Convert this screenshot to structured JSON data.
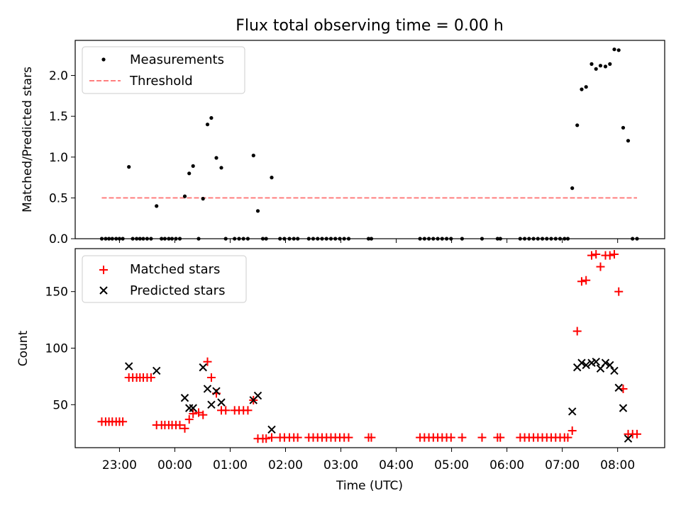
{
  "figure": {
    "title": "Flux total observing time = 0.00 h"
  },
  "colors": {
    "measurements": "#000000",
    "threshold": "#ff7f7f",
    "matched": "#ff0000",
    "predicted": "#000000"
  },
  "chart_data": [
    {
      "type": "scatter",
      "title": "Flux total observing time = 0.00 h",
      "xlabel": "",
      "ylabel": "Matched/Predicted stars",
      "xlim": [
        -1.8,
        8.85
      ],
      "ylim": [
        0.0,
        2.43
      ],
      "yticks": [
        0.0,
        0.5,
        1.0,
        1.5,
        2.0
      ],
      "ytick_labels": [
        "0.0",
        "0.5",
        "1.0",
        "1.5",
        "2.0"
      ],
      "x_unit": "hours since 00:00 UTC",
      "legend": {
        "position": "top-left",
        "entries": [
          "Measurements",
          "Threshold"
        ]
      },
      "grid": false,
      "series": [
        {
          "name": "Measurements",
          "marker": "dot",
          "points": [
            [
              -1.32,
              0
            ],
            [
              -1.25,
              0
            ],
            [
              -1.19,
              0
            ],
            [
              -1.13,
              0
            ],
            [
              -1.06,
              0
            ],
            [
              -1.0,
              0
            ],
            [
              -0.94,
              0
            ],
            [
              -0.83,
              0.88
            ],
            [
              -0.76,
              0
            ],
            [
              -0.69,
              0
            ],
            [
              -0.63,
              0
            ],
            [
              -0.57,
              0
            ],
            [
              -0.5,
              0
            ],
            [
              -0.43,
              0
            ],
            [
              -0.33,
              0.4
            ],
            [
              -0.24,
              0
            ],
            [
              -0.18,
              0
            ],
            [
              -0.11,
              0
            ],
            [
              -0.05,
              0
            ],
            [
              0.02,
              0
            ],
            [
              0.09,
              0
            ],
            [
              0.18,
              0.52
            ],
            [
              0.26,
              0.8
            ],
            [
              0.33,
              0.89
            ],
            [
              0.43,
              0
            ],
            [
              0.51,
              0.49
            ],
            [
              0.59,
              1.4
            ],
            [
              0.66,
              1.48
            ],
            [
              0.75,
              0.99
            ],
            [
              0.84,
              0.87
            ],
            [
              0.92,
              0
            ],
            [
              1.08,
              0
            ],
            [
              1.16,
              0
            ],
            [
              1.24,
              0
            ],
            [
              1.32,
              0
            ],
            [
              1.42,
              1.02
            ],
            [
              1.5,
              0.34
            ],
            [
              1.59,
              0
            ],
            [
              1.65,
              0
            ],
            [
              1.75,
              0.75
            ],
            [
              1.9,
              0
            ],
            [
              1.98,
              0
            ],
            [
              2.07,
              0
            ],
            [
              2.15,
              0
            ],
            [
              2.22,
              0
            ],
            [
              2.42,
              0
            ],
            [
              2.5,
              0
            ],
            [
              2.58,
              0
            ],
            [
              2.66,
              0
            ],
            [
              2.74,
              0
            ],
            [
              2.82,
              0
            ],
            [
              2.9,
              0
            ],
            [
              2.98,
              0
            ],
            [
              3.06,
              0
            ],
            [
              3.14,
              0
            ],
            [
              3.5,
              0
            ],
            [
              3.55,
              0
            ],
            [
              4.43,
              0
            ],
            [
              4.51,
              0
            ],
            [
              4.59,
              0
            ],
            [
              4.67,
              0
            ],
            [
              4.75,
              0
            ],
            [
              4.83,
              0
            ],
            [
              4.91,
              0
            ],
            [
              4.99,
              0
            ],
            [
              5.19,
              0
            ],
            [
              5.55,
              0
            ],
            [
              5.83,
              0
            ],
            [
              5.88,
              0
            ],
            [
              6.24,
              0
            ],
            [
              6.32,
              0
            ],
            [
              6.4,
              0
            ],
            [
              6.48,
              0
            ],
            [
              6.56,
              0
            ],
            [
              6.64,
              0
            ],
            [
              6.72,
              0
            ],
            [
              6.8,
              0
            ],
            [
              6.88,
              0
            ],
            [
              6.96,
              0
            ],
            [
              7.04,
              0
            ],
            [
              7.1,
              0
            ],
            [
              7.18,
              0.62
            ],
            [
              7.27,
              1.39
            ],
            [
              7.35,
              1.83
            ],
            [
              7.43,
              1.86
            ],
            [
              7.53,
              2.14
            ],
            [
              7.61,
              2.08
            ],
            [
              7.69,
              2.12
            ],
            [
              7.78,
              2.11
            ],
            [
              7.86,
              2.14
            ],
            [
              7.94,
              2.32
            ],
            [
              8.02,
              2.31
            ],
            [
              8.1,
              1.36
            ],
            [
              8.19,
              1.2
            ],
            [
              8.27,
              0
            ],
            [
              8.35,
              0
            ]
          ]
        },
        {
          "name": "Threshold",
          "style": "dashed",
          "x": [
            -1.32,
            8.35
          ],
          "y": [
            0.5,
            0.5
          ]
        }
      ]
    },
    {
      "type": "scatter",
      "title": "",
      "xlabel": "Time (UTC)",
      "ylabel": "Count",
      "xlim": [
        -1.8,
        8.85
      ],
      "ylim": [
        12,
        188
      ],
      "yticks": [
        50,
        100,
        150
      ],
      "ytick_labels": [
        "50",
        "100",
        "150"
      ],
      "xticks": [
        -1,
        0,
        1,
        2,
        3,
        4,
        5,
        6,
        7,
        8
      ],
      "xtick_labels": [
        "23:00",
        "00:00",
        "01:00",
        "02:00",
        "03:00",
        "04:00",
        "05:00",
        "06:00",
        "07:00",
        "08:00"
      ],
      "x_unit": "hours since 00:00 UTC",
      "legend": {
        "position": "top-left",
        "entries": [
          "Matched stars",
          "Predicted stars"
        ]
      },
      "grid": false,
      "series": [
        {
          "name": "Matched stars",
          "marker": "plus",
          "points": [
            [
              -1.32,
              35
            ],
            [
              -1.25,
              35
            ],
            [
              -1.19,
              35
            ],
            [
              -1.13,
              35
            ],
            [
              -1.06,
              35
            ],
            [
              -1.0,
              35
            ],
            [
              -0.94,
              35
            ],
            [
              -0.83,
              74
            ],
            [
              -0.76,
              74
            ],
            [
              -0.69,
              74
            ],
            [
              -0.63,
              74
            ],
            [
              -0.57,
              74
            ],
            [
              -0.5,
              74
            ],
            [
              -0.43,
              74
            ],
            [
              -0.33,
              32
            ],
            [
              -0.24,
              32
            ],
            [
              -0.18,
              32
            ],
            [
              -0.11,
              32
            ],
            [
              -0.05,
              32
            ],
            [
              0.02,
              32
            ],
            [
              0.09,
              32
            ],
            [
              0.18,
              29
            ],
            [
              0.26,
              37
            ],
            [
              0.33,
              42
            ],
            [
              0.43,
              43
            ],
            [
              0.51,
              41
            ],
            [
              0.59,
              88
            ],
            [
              0.66,
              74
            ],
            [
              0.75,
              60
            ],
            [
              0.84,
              45
            ],
            [
              0.92,
              45
            ],
            [
              1.08,
              45
            ],
            [
              1.16,
              45
            ],
            [
              1.24,
              45
            ],
            [
              1.32,
              45
            ],
            [
              1.42,
              54
            ],
            [
              1.5,
              20
            ],
            [
              1.59,
              20
            ],
            [
              1.65,
              20
            ],
            [
              1.75,
              21
            ],
            [
              1.9,
              21
            ],
            [
              1.98,
              21
            ],
            [
              2.07,
              21
            ],
            [
              2.15,
              21
            ],
            [
              2.22,
              21
            ],
            [
              2.42,
              21
            ],
            [
              2.5,
              21
            ],
            [
              2.58,
              21
            ],
            [
              2.66,
              21
            ],
            [
              2.74,
              21
            ],
            [
              2.82,
              21
            ],
            [
              2.9,
              21
            ],
            [
              2.98,
              21
            ],
            [
              3.06,
              21
            ],
            [
              3.14,
              21
            ],
            [
              3.5,
              21
            ],
            [
              3.55,
              21
            ],
            [
              4.43,
              21
            ],
            [
              4.51,
              21
            ],
            [
              4.59,
              21
            ],
            [
              4.67,
              21
            ],
            [
              4.75,
              21
            ],
            [
              4.83,
              21
            ],
            [
              4.91,
              21
            ],
            [
              4.99,
              21
            ],
            [
              5.19,
              21
            ],
            [
              5.55,
              21
            ],
            [
              5.83,
              21
            ],
            [
              5.88,
              21
            ],
            [
              6.24,
              21
            ],
            [
              6.32,
              21
            ],
            [
              6.4,
              21
            ],
            [
              6.48,
              21
            ],
            [
              6.56,
              21
            ],
            [
              6.64,
              21
            ],
            [
              6.72,
              21
            ],
            [
              6.8,
              21
            ],
            [
              6.88,
              21
            ],
            [
              6.96,
              21
            ],
            [
              7.04,
              21
            ],
            [
              7.1,
              21
            ],
            [
              7.18,
              27
            ],
            [
              7.27,
              115
            ],
            [
              7.35,
              159
            ],
            [
              7.43,
              160
            ],
            [
              7.53,
              182
            ],
            [
              7.61,
              183
            ],
            [
              7.69,
              172
            ],
            [
              7.78,
              182
            ],
            [
              7.86,
              182
            ],
            [
              7.94,
              183
            ],
            [
              8.02,
              150
            ],
            [
              8.1,
              64
            ],
            [
              8.19,
              24
            ],
            [
              8.27,
              24
            ],
            [
              8.35,
              24
            ]
          ]
        },
        {
          "name": "Predicted stars",
          "marker": "x",
          "points": [
            [
              -0.83,
              84
            ],
            [
              -0.33,
              80
            ],
            [
              0.18,
              56
            ],
            [
              0.26,
              47
            ],
            [
              0.33,
              47
            ],
            [
              0.51,
              83
            ],
            [
              0.59,
              64
            ],
            [
              0.66,
              50
            ],
            [
              0.75,
              62
            ],
            [
              0.84,
              52
            ],
            [
              1.42,
              54
            ],
            [
              1.5,
              58
            ],
            [
              1.75,
              28
            ],
            [
              7.18,
              44
            ],
            [
              7.27,
              83
            ],
            [
              7.35,
              87
            ],
            [
              7.43,
              85
            ],
            [
              7.53,
              87
            ],
            [
              7.61,
              88
            ],
            [
              7.69,
              82
            ],
            [
              7.78,
              87
            ],
            [
              7.86,
              85
            ],
            [
              7.94,
              80
            ],
            [
              8.02,
              65
            ],
            [
              8.1,
              47
            ],
            [
              8.19,
              20
            ]
          ]
        }
      ]
    }
  ]
}
